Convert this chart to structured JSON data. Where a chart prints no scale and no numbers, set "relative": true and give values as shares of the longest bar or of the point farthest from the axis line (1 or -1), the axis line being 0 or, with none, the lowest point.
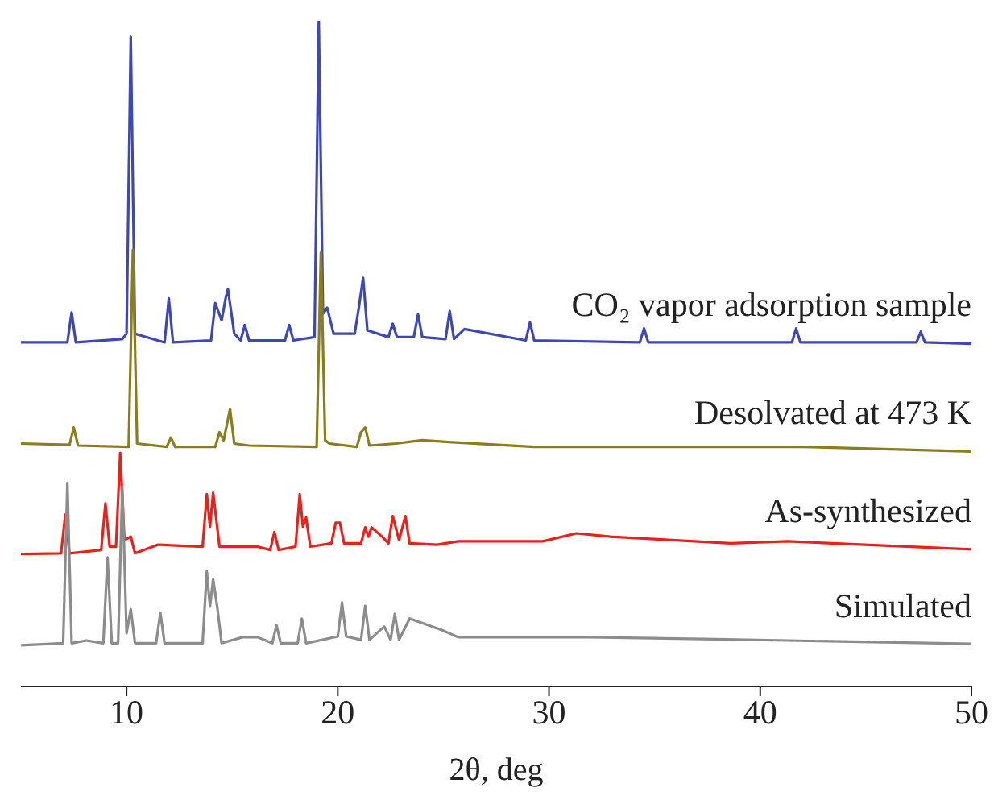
{
  "chart_data": {
    "type": "line",
    "relative": true,
    "xlabel": "2θ, deg",
    "xlim": [
      5,
      50
    ],
    "xticks": [
      10,
      20,
      30,
      40,
      50
    ],
    "grid": false,
    "legend": false,
    "marker": "none",
    "line_style": "solid",
    "series": [
      {
        "name": "CO₂ vapor adsorption sample",
        "color": "#3f48b0",
        "x": [
          5,
          7.2,
          7.4,
          7.6,
          9.8,
          10.0,
          10.2,
          10.4,
          11.8,
          12.0,
          12.2,
          14.0,
          14.2,
          14.5,
          14.7,
          14.8,
          15.1,
          15.4,
          15.6,
          15.8,
          17.5,
          17.7,
          17.9,
          18.9,
          19.1,
          19.3,
          19.5,
          19.8,
          20.8,
          21.0,
          21.2,
          21.4,
          22.4,
          22.6,
          22.8,
          23.6,
          23.8,
          24.0,
          25.1,
          25.3,
          25.5,
          26.0,
          28.9,
          29.1,
          29.3,
          34.3,
          34.5,
          34.7,
          41.5,
          41.7,
          41.9,
          47.4,
          47.6,
          47.8,
          50
        ],
        "values": [
          0.517,
          0.517,
          0.562,
          0.517,
          0.522,
          0.53,
          0.976,
          0.53,
          0.517,
          0.583,
          0.517,
          0.52,
          0.576,
          0.55,
          0.585,
          0.597,
          0.53,
          0.52,
          0.543,
          0.52,
          0.52,
          0.543,
          0.52,
          0.525,
          1.0,
          0.56,
          0.569,
          0.53,
          0.53,
          0.57,
          0.614,
          0.535,
          0.525,
          0.545,
          0.525,
          0.525,
          0.559,
          0.525,
          0.522,
          0.564,
          0.522,
          0.537,
          0.52,
          0.547,
          0.52,
          0.517,
          0.538,
          0.517,
          0.517,
          0.538,
          0.517,
          0.517,
          0.533,
          0.517,
          0.515
        ]
      },
      {
        "name": "Desolvated at 473 K",
        "color": "#8a7d1e",
        "x": [
          5,
          7.3,
          7.5,
          7.7,
          10.1,
          10.3,
          10.5,
          11.9,
          12.1,
          12.3,
          14.2,
          14.4,
          14.6,
          14.9,
          15.1,
          15.8,
          19.0,
          19.2,
          19.4,
          19.6,
          20.9,
          21.1,
          21.3,
          21.5,
          22.75,
          24.0,
          25.4,
          29.3,
          30.0,
          34.7,
          42.0,
          50
        ],
        "values": [
          0.365,
          0.363,
          0.389,
          0.362,
          0.36,
          0.656,
          0.365,
          0.36,
          0.374,
          0.36,
          0.36,
          0.382,
          0.37,
          0.417,
          0.365,
          0.362,
          0.36,
          0.652,
          0.37,
          0.365,
          0.36,
          0.382,
          0.389,
          0.362,
          0.365,
          0.37,
          0.367,
          0.36,
          0.36,
          0.36,
          0.36,
          0.353
        ]
      },
      {
        "name": "As-synthesized",
        "color": "#e8221b",
        "x": [
          5,
          6.9,
          7.1,
          7.3,
          8.8,
          9.0,
          9.2,
          9.5,
          9.7,
          9.9,
          10.2,
          10.4,
          11.5,
          13.6,
          13.8,
          13.95,
          14.1,
          14.4,
          15.4,
          16.2,
          16.8,
          17.0,
          17.2,
          18.0,
          18.2,
          18.35,
          18.5,
          18.7,
          19.7,
          19.9,
          20.1,
          20.3,
          21.1,
          21.3,
          21.45,
          21.6,
          22.1,
          22.4,
          22.6,
          22.9,
          23.2,
          23.4,
          24.7,
          25.7,
          29.7,
          31.3,
          32.9,
          38.6,
          41.3,
          50
        ],
        "values": [
          0.199,
          0.2,
          0.258,
          0.2,
          0.205,
          0.275,
          0.21,
          0.21,
          0.351,
          0.22,
          0.225,
          0.2,
          0.213,
          0.21,
          0.289,
          0.24,
          0.291,
          0.21,
          0.21,
          0.21,
          0.205,
          0.232,
          0.205,
          0.21,
          0.289,
          0.24,
          0.254,
          0.21,
          0.215,
          0.246,
          0.246,
          0.215,
          0.215,
          0.239,
          0.225,
          0.239,
          0.225,
          0.215,
          0.256,
          0.22,
          0.256,
          0.215,
          0.213,
          0.218,
          0.218,
          0.23,
          0.225,
          0.215,
          0.218,
          0.206
        ]
      },
      {
        "name": "Simulated",
        "color": "#8c8c8c",
        "x": [
          5,
          7.0,
          7.2,
          7.4,
          8.1,
          8.9,
          9.1,
          9.3,
          9.6,
          9.8,
          10.0,
          10.2,
          10.4,
          11.4,
          11.6,
          11.8,
          13.6,
          13.8,
          13.95,
          14.1,
          14.3,
          14.5,
          15.5,
          16.2,
          16.9,
          17.1,
          17.3,
          18.1,
          18.3,
          18.5,
          20.0,
          20.2,
          20.4,
          21.1,
          21.3,
          21.5,
          22.2,
          22.5,
          22.7,
          22.9,
          23.4,
          24.9,
          25.7,
          29.5,
          31.9,
          37.9,
          41.3,
          50
        ],
        "values": [
          0.062,
          0.065,
          0.306,
          0.065,
          0.069,
          0.065,
          0.194,
          0.065,
          0.065,
          0.3,
          0.08,
          0.116,
          0.065,
          0.065,
          0.111,
          0.065,
          0.065,
          0.173,
          0.12,
          0.161,
          0.118,
          0.065,
          0.074,
          0.074,
          0.065,
          0.092,
          0.065,
          0.065,
          0.102,
          0.065,
          0.075,
          0.126,
          0.075,
          0.07,
          0.121,
          0.07,
          0.09,
          0.07,
          0.109,
          0.07,
          0.102,
          0.085,
          0.074,
          0.074,
          0.074,
          0.071,
          0.069,
          0.064
        ]
      }
    ]
  }
}
